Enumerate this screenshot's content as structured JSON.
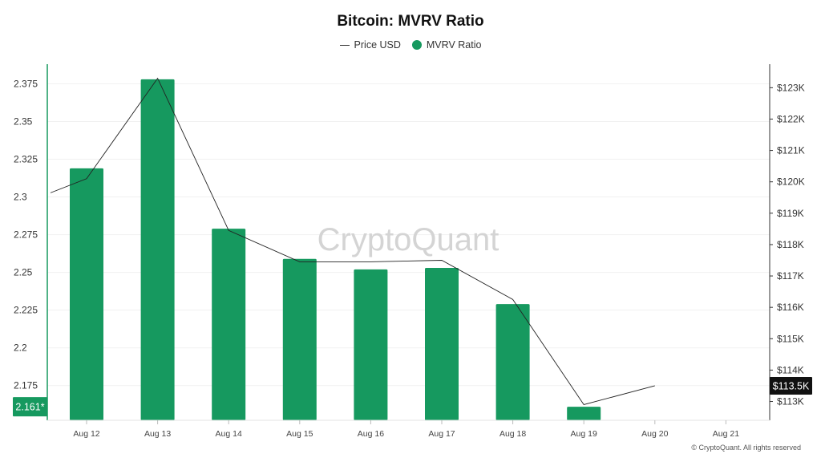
{
  "title": "Bitcoin: MVRV Ratio",
  "legend": {
    "price_label": "Price USD",
    "mvrv_label": "MVRV Ratio"
  },
  "watermark": "CryptoQuant",
  "copyright": "© CryptoQuant. All rights reserved",
  "colors": {
    "bar": "#16995f",
    "price_line": "#222222",
    "left_axis": "#16995f",
    "right_axis": "#333333",
    "price_badge_bg": "#111111",
    "mvrv_badge_bg": "#16995f"
  },
  "chart_data": {
    "type": "bar",
    "title": "Bitcoin: MVRV Ratio",
    "categories": [
      "Aug 12",
      "Aug 13",
      "Aug 14",
      "Aug 15",
      "Aug 16",
      "Aug 17",
      "Aug 18",
      "Aug 19",
      "Aug 20",
      "Aug 21"
    ],
    "series": [
      {
        "name": "MVRV Ratio",
        "type": "bar",
        "axis": "left",
        "values": [
          2.319,
          2.378,
          2.279,
          2.259,
          2.252,
          2.253,
          2.229,
          2.161,
          null,
          null
        ]
      },
      {
        "name": "Price USD",
        "type": "line",
        "axis": "right",
        "start_value": 119650,
        "values": [
          120100,
          123300,
          118450,
          117450,
          117450,
          117500,
          116250,
          112900,
          113500,
          null
        ]
      }
    ],
    "left_axis": {
      "ticks": [
        2.175,
        2.2,
        2.225,
        2.25,
        2.275,
        2.3,
        2.325,
        2.35,
        2.375
      ],
      "tick_labels": [
        "2.175",
        "2.2",
        "2.225",
        "2.25",
        "2.275",
        "2.3",
        "2.325",
        "2.35",
        "2.375"
      ],
      "range": [
        2.152,
        2.388
      ]
    },
    "right_axis": {
      "ticks": [
        113000,
        114000,
        115000,
        116000,
        117000,
        118000,
        119000,
        120000,
        121000,
        122000,
        123000
      ],
      "tick_labels": [
        "$113K",
        "$114K",
        "$115K",
        "$116K",
        "$117K",
        "$118K",
        "$119K",
        "$120K",
        "$121K",
        "$122K",
        "$123K"
      ],
      "range": [
        112400,
        123750
      ]
    },
    "current_price_label": "$113.5K",
    "current_price_value": 113500,
    "current_mvrv_label": "2.161*",
    "current_mvrv_value": 2.161,
    "grid": true,
    "legend_position": "top-center"
  }
}
